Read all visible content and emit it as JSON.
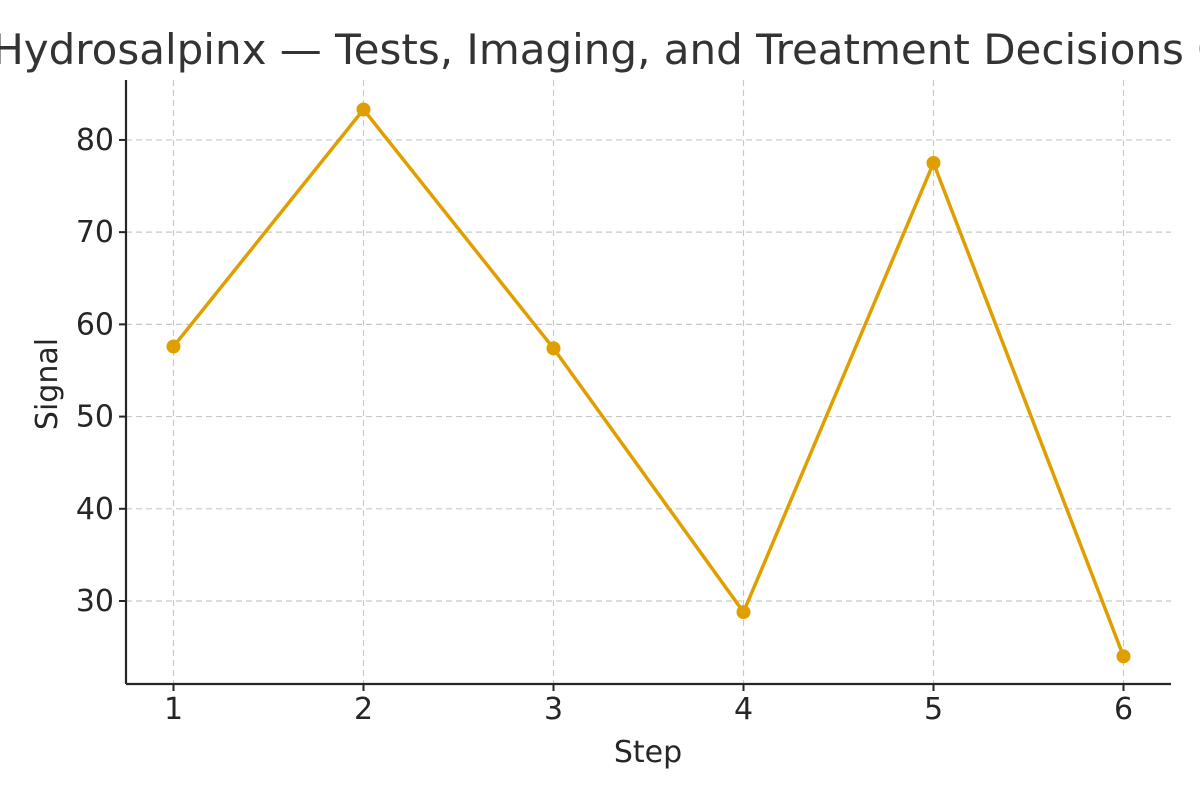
{
  "chart_data": {
    "type": "line",
    "title": "Hydrosalpinx — Tests, Imaging, and Treatment Decisions Q&A",
    "xlabel": "Step",
    "ylabel": "Signal",
    "x": [
      1,
      2,
      3,
      4,
      5,
      6
    ],
    "xlim": [
      0.75,
      6.25
    ],
    "ylim": [
      21,
      86.5
    ],
    "yticks": [
      30,
      40,
      50,
      60,
      70,
      80
    ],
    "grid": true,
    "series": [
      {
        "values": [
          57.6,
          83.3,
          57.4,
          28.8,
          77.5,
          24.0
        ],
        "color": "#e09f00"
      }
    ]
  }
}
